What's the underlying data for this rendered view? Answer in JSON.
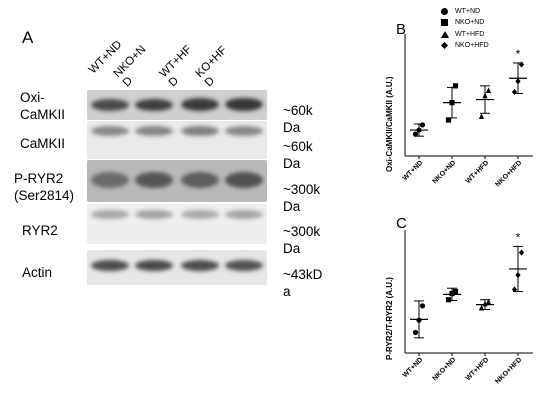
{
  "panel_a": {
    "letter": "A",
    "columns": [
      "WT+ND",
      "NKO+N\nD",
      "WT+HF\nD",
      "KO+HF\nD"
    ],
    "rows": [
      {
        "label": "Oxi-\nCaMKII",
        "size": "~60k\nDa"
      },
      {
        "label": "CaMKII",
        "size": "~60k\nDa"
      },
      {
        "label": "P-RYR2\n(Ser2814)",
        "size": "~300k\nDa"
      },
      {
        "label": "RYR2",
        "size": "~300k\nDa"
      },
      {
        "label": "Actin",
        "size": "~43kD\na"
      }
    ]
  },
  "legend": {
    "items": [
      {
        "label": "WT+ND",
        "marker": "circle"
      },
      {
        "label": "NKO+ND",
        "marker": "square"
      },
      {
        "label": "WT+HFD",
        "marker": "triangle"
      },
      {
        "label": "NKO+HFD",
        "marker": "diamond"
      }
    ]
  },
  "chart_data": [
    {
      "panel": "B",
      "type": "scatter",
      "ylabel": "Oxi-CaMKII/CaMKII (A.U.)",
      "categories": [
        "WT+ND",
        "NKO+ND",
        "WT+HFD",
        "NKO+HFD"
      ],
      "markers": [
        "circle",
        "square",
        "triangle",
        "diamond"
      ],
      "ylim": [
        0,
        4
      ],
      "yticks": [],
      "points": [
        [
          0.72,
          0.85,
          1.02
        ],
        [
          1.18,
          1.75,
          2.3
        ],
        [
          1.3,
          1.98,
          2.15
        ],
        [
          2.1,
          2.45,
          3.0
        ]
      ],
      "mean": [
        0.85,
        1.75,
        1.85,
        2.55
      ],
      "sd": [
        0.2,
        0.5,
        0.45,
        0.5
      ],
      "annotations": [
        {
          "category": "NKO+HFD",
          "text": "*"
        }
      ]
    },
    {
      "panel": "C",
      "type": "scatter",
      "ylabel": "P-RYR2/T-RYR2 (A.U.)",
      "categories": [
        "WT+ND",
        "NKO+ND",
        "WT+HFD",
        "NKO+HFD"
      ],
      "markers": [
        "circle",
        "square",
        "triangle",
        "diamond"
      ],
      "ylim": [
        0,
        3
      ],
      "yticks": [],
      "points": [
        [
          0.5,
          0.8,
          1.15
        ],
        [
          1.3,
          1.45,
          1.5
        ],
        [
          1.1,
          1.2,
          1.25
        ],
        [
          1.55,
          1.9,
          2.45
        ]
      ],
      "mean": [
        0.82,
        1.43,
        1.18,
        2.05
      ],
      "sd": [
        0.45,
        0.15,
        0.12,
        0.55
      ],
      "annotations": [
        {
          "category": "NKO+HFD",
          "text": "*"
        }
      ]
    }
  ]
}
